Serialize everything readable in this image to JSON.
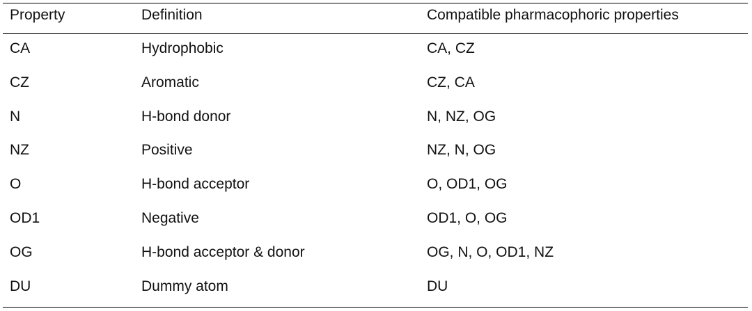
{
  "table": {
    "header": [
      "Property",
      "Definition",
      "Compatible pharmacophoric properties"
    ],
    "rows": [
      [
        "CA",
        "Hydrophobic",
        "CA, CZ"
      ],
      [
        "CZ",
        "Aromatic",
        "CZ, CA"
      ],
      [
        "N",
        "H-bond donor",
        "N, NZ, OG"
      ],
      [
        "NZ",
        "Positive",
        "NZ, N, OG"
      ],
      [
        "O",
        "H-bond acceptor",
        "O, OD1, OG"
      ],
      [
        "OD1",
        "Negative",
        "OD1, O, OG"
      ],
      [
        "OG",
        "H-bond acceptor & donor",
        "OG, N, O, OD1, NZ"
      ],
      [
        "DU",
        "Dummy atom",
        "DU"
      ]
    ]
  }
}
